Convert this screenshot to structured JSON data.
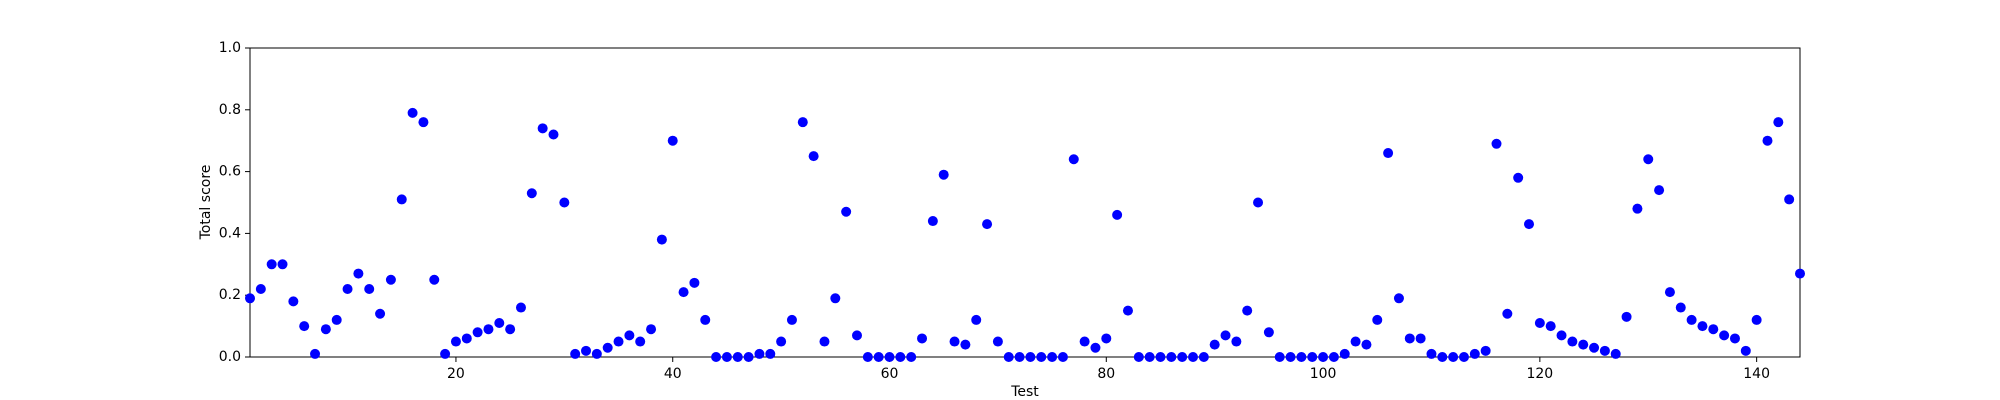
{
  "chart_data": {
    "type": "scatter",
    "xlabel": "Test",
    "ylabel": "Total score",
    "color": "#0000ff",
    "x": [
      1,
      2,
      3,
      4,
      5,
      6,
      7,
      8,
      9,
      10,
      11,
      12,
      13,
      14,
      15,
      16,
      17,
      18,
      19,
      20,
      21,
      22,
      23,
      24,
      25,
      26,
      27,
      28,
      29,
      30,
      31,
      32,
      33,
      34,
      35,
      36,
      37,
      38,
      39,
      40,
      41,
      42,
      43,
      44,
      45,
      46,
      47,
      48,
      49,
      50,
      51,
      52,
      53,
      54,
      55,
      56,
      57,
      58,
      59,
      60,
      61,
      62,
      63,
      64,
      65,
      66,
      67,
      68,
      69,
      70,
      71,
      72,
      73,
      74,
      75,
      76,
      77,
      78,
      79,
      80,
      81,
      82,
      83,
      84,
      85,
      86,
      87,
      88,
      89,
      90,
      91,
      92,
      93,
      94,
      95,
      96,
      97,
      98,
      99,
      100,
      101,
      102,
      103,
      104,
      105,
      106,
      107,
      108,
      109,
      110,
      111,
      112,
      113,
      114,
      115,
      116,
      117,
      118,
      119,
      120,
      121,
      122,
      123,
      124,
      125,
      126,
      127,
      128,
      129,
      130,
      131,
      132,
      133,
      134,
      135,
      136,
      137,
      138,
      139,
      140,
      141,
      142,
      143,
      144
    ],
    "values": [
      0.19,
      0.22,
      0.3,
      0.3,
      0.18,
      0.1,
      0.01,
      0.09,
      0.12,
      0.22,
      0.27,
      0.22,
      0.14,
      0.25,
      0.51,
      0.79,
      0.76,
      0.25,
      0.01,
      0.05,
      0.06,
      0.08,
      0.09,
      0.11,
      0.09,
      0.16,
      0.53,
      0.74,
      0.72,
      0.5,
      0.01,
      0.02,
      0.01,
      0.03,
      0.05,
      0.07,
      0.05,
      0.09,
      0.38,
      0.7,
      0.21,
      0.24,
      0.12,
      0,
      0,
      0,
      0,
      0.01,
      0.01,
      0.05,
      0.12,
      0.76,
      0.65,
      0.05,
      0.19,
      0.47,
      0.07,
      0,
      0,
      0,
      0,
      0,
      0.06,
      0.44,
      0.59,
      0.05,
      0.04,
      0.12,
      0.43,
      0.05,
      0,
      0,
      0,
      0,
      0,
      0,
      0.64,
      0.05,
      0.03,
      0.06,
      0.46,
      0.15,
      0,
      0,
      0,
      0,
      0,
      0,
      0,
      0.04,
      0.07,
      0.05,
      0.15,
      0.5,
      0.08,
      0,
      0,
      0,
      0,
      0,
      0,
      0.01,
      0.05,
      0.04,
      0.12,
      0.66,
      0.19,
      0.06,
      0.06,
      0.01,
      0,
      0,
      0,
      0.01,
      0.02,
      0.69,
      0.14,
      0.58,
      0.43,
      0.11,
      0.1,
      0.07,
      0.05,
      0.04,
      0.03,
      0.02,
      0.01,
      0.13,
      0.48,
      0.64,
      0.54,
      0.21,
      0.16,
      0.12,
      0.1,
      0.09,
      0.07,
      0.06,
      0.02,
      0.12,
      0.7,
      0.76,
      0.51,
      0.27
    ],
    "xlim": [
      1,
      144
    ],
    "ylim": [
      0,
      1
    ],
    "xticks": [
      20,
      40,
      60,
      80,
      100,
      120,
      140
    ],
    "yticks": [
      {
        "value": 0,
        "label": "0.0"
      },
      0.2,
      0.4,
      0.6,
      0.8,
      {
        "value": 1,
        "label": "1.0"
      }
    ]
  }
}
